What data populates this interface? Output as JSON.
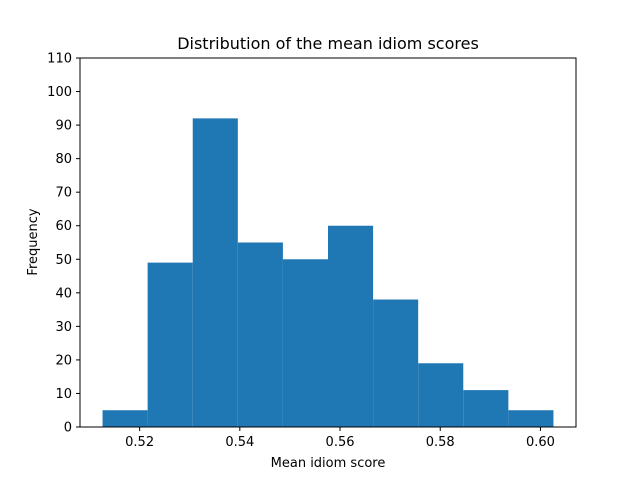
{
  "chart_data": {
    "type": "bar",
    "title": "Distribution of the mean idiom scores",
    "xlabel": "Mean idiom score",
    "ylabel": "Frequency",
    "bin_edges": [
      0.5126,
      0.5216,
      0.5306,
      0.5396,
      0.5486,
      0.5576,
      0.5666,
      0.5756,
      0.5846,
      0.5936,
      0.6026
    ],
    "values": [
      5,
      49,
      92,
      55,
      50,
      60,
      38,
      19,
      11,
      5
    ],
    "xlim": [
      0.5081,
      0.6071
    ],
    "ylim": [
      0,
      110
    ],
    "xticks": [
      "0.52",
      "0.54",
      "0.56",
      "0.58",
      "0.60"
    ],
    "yticks": [
      "0",
      "10",
      "20",
      "30",
      "40",
      "50",
      "60",
      "70",
      "80",
      "90",
      "100",
      "110"
    ],
    "bar_color": "#1f77b4",
    "grid": false,
    "legend": "none"
  }
}
